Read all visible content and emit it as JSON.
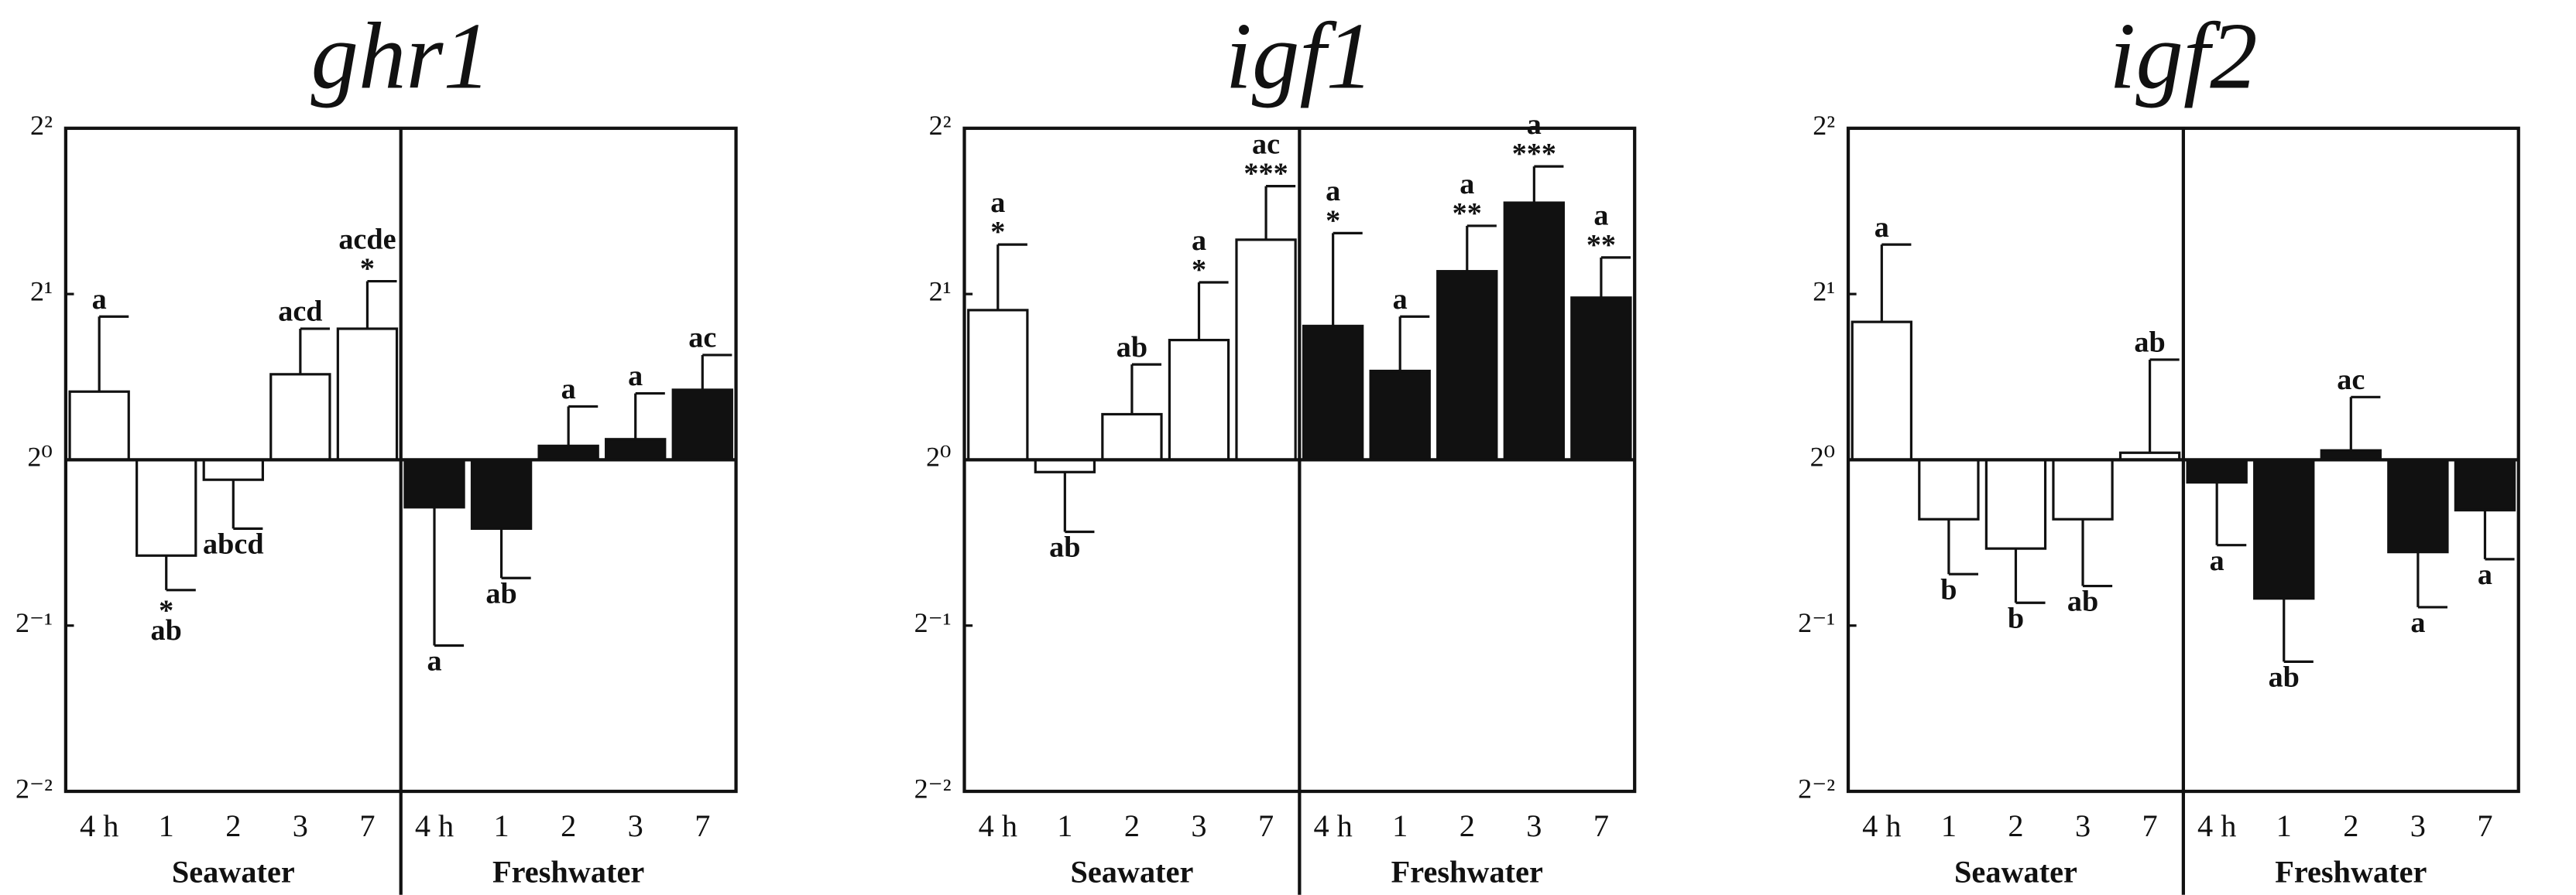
{
  "chart_data": [
    {
      "type": "bar",
      "title": "ghr1",
      "yscale": "log",
      "log_base": 2,
      "ylim": [
        0.25,
        4
      ],
      "yticks": [
        {
          "value": 0.25,
          "label": "2⁻²"
        },
        {
          "value": 0.5,
          "label": "2⁻¹"
        },
        {
          "value": 1,
          "label": "2⁰"
        },
        {
          "value": 2,
          "label": "2¹"
        },
        {
          "value": 4,
          "label": "2²"
        }
      ],
      "categories": [
        "4 h",
        "1",
        "2",
        "3",
        "7"
      ],
      "series": [
        {
          "name": "Seawater",
          "color": "#ffffff",
          "values": [
            1.33,
            0.67,
            0.92,
            1.43,
            1.73
          ],
          "errors": [
            0.49,
            0.09,
            0.17,
            0.3,
            0.38
          ],
          "letters": [
            "a",
            "ab",
            "abcd",
            "acd",
            "acde"
          ],
          "stars": [
            null,
            "*",
            null,
            null,
            "*"
          ]
        },
        {
          "name": "Freshwater",
          "color": "#111111",
          "values": [
            0.82,
            0.75,
            1.06,
            1.09,
            1.34
          ],
          "errors": [
            0.36,
            0.14,
            0.19,
            0.23,
            0.21
          ],
          "letters": [
            "a",
            "ab",
            "a",
            "a",
            "ac"
          ],
          "stars": [
            null,
            null,
            null,
            null,
            null
          ]
        }
      ]
    },
    {
      "type": "bar",
      "title": "igf1",
      "yscale": "log",
      "log_base": 2,
      "ylim": [
        0.25,
        4
      ],
      "yticks": [
        {
          "value": 0.25,
          "label": "2⁻²"
        },
        {
          "value": 0.5,
          "label": "2⁻¹"
        },
        {
          "value": 1,
          "label": "2⁰"
        },
        {
          "value": 2,
          "label": "2¹"
        },
        {
          "value": 4,
          "label": "2²"
        }
      ],
      "categories": [
        "4 h",
        "1",
        "2",
        "3",
        "7"
      ],
      "series": [
        {
          "name": "Seawater",
          "color": "#ffffff",
          "values": [
            1.87,
            0.95,
            1.21,
            1.65,
            2.51
          ],
          "errors": [
            0.59,
            0.21,
            0.28,
            0.45,
            0.63
          ],
          "letters": [
            "a",
            "ab",
            "ab",
            "a",
            "ac"
          ],
          "stars": [
            "*",
            null,
            null,
            "*",
            "***"
          ]
        },
        {
          "name": "Freshwater",
          "color": "#111111",
          "values": [
            1.75,
            1.45,
            2.2,
            2.93,
            1.97
          ],
          "errors": [
            0.83,
            0.37,
            0.46,
            0.48,
            0.36
          ],
          "letters": [
            "a",
            "a",
            "a",
            "a",
            "a"
          ],
          "stars": [
            "*",
            null,
            "**",
            "***",
            "**"
          ]
        }
      ]
    },
    {
      "type": "bar",
      "title": "igf2",
      "yscale": "log",
      "log_base": 2,
      "ylim": [
        0.25,
        4
      ],
      "yticks": [
        {
          "value": 0.25,
          "label": "2⁻²"
        },
        {
          "value": 0.5,
          "label": "2⁻¹"
        },
        {
          "value": 1,
          "label": "2⁰"
        },
        {
          "value": 2,
          "label": "2¹"
        },
        {
          "value": 4,
          "label": "2²"
        }
      ],
      "categories": [
        "4 h",
        "1",
        "2",
        "3",
        "7"
      ],
      "series": [
        {
          "name": "Seawater",
          "color": "#ffffff",
          "values": [
            1.78,
            0.78,
            0.69,
            0.78,
            1.03
          ],
          "errors": [
            0.68,
            0.16,
            0.14,
            0.19,
            0.49
          ],
          "letters": [
            "a",
            "b",
            "b",
            "ab",
            "ab"
          ],
          "stars": [
            null,
            null,
            null,
            null,
            null
          ]
        },
        {
          "name": "Freshwater",
          "color": "#111111",
          "values": [
            0.91,
            0.56,
            1.04,
            0.68,
            0.81
          ],
          "errors": [
            0.21,
            0.13,
            0.26,
            0.14,
            0.15
          ],
          "letters": [
            "a",
            "ab",
            "ac",
            "a",
            "a"
          ],
          "stars": [
            null,
            null,
            null,
            null,
            null
          ]
        }
      ]
    }
  ]
}
